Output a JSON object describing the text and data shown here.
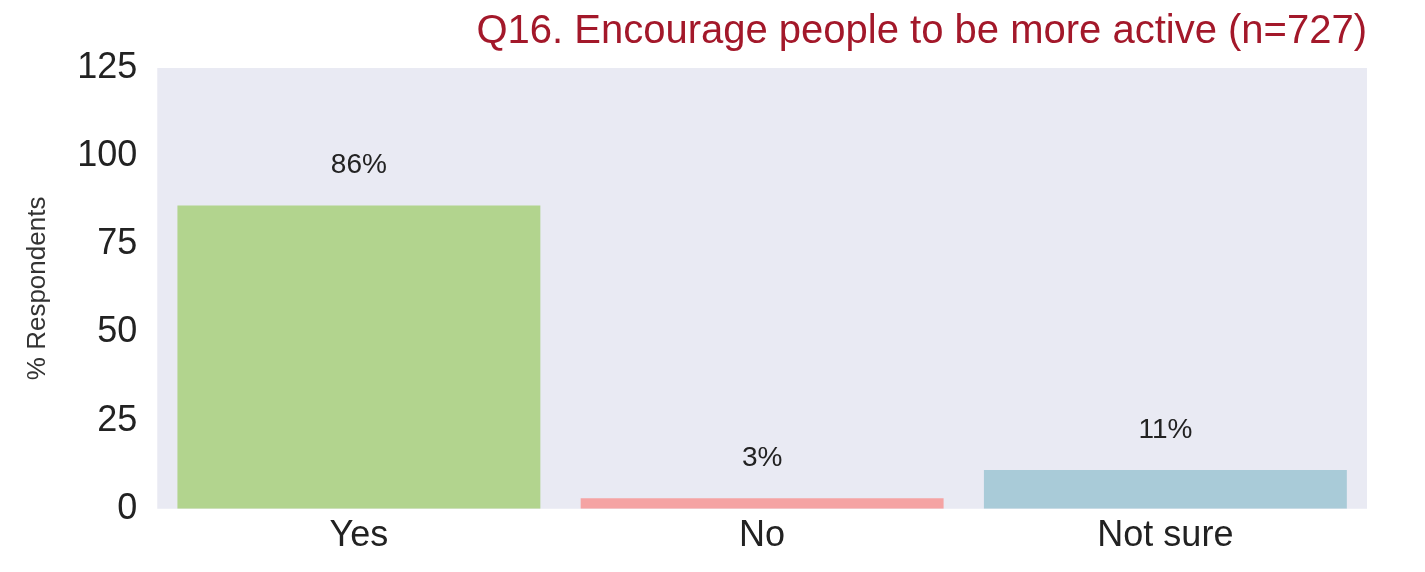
{
  "chart_data": {
    "type": "bar",
    "title": "Q16. Encourage people to be more active (n=727)",
    "ylabel": "% Respondents",
    "categories": [
      "Yes",
      "No",
      "Not sure"
    ],
    "values": [
      86,
      3,
      11
    ],
    "colors": [
      "#b2d48e",
      "#f5a3a3",
      "#a9cbd8"
    ],
    "value_labels": [
      "86%",
      "3%",
      "11%"
    ],
    "ylim": [
      0,
      125
    ],
    "yticks": [
      0,
      25,
      50,
      75,
      100,
      125
    ],
    "grid": false,
    "legend": false
  }
}
